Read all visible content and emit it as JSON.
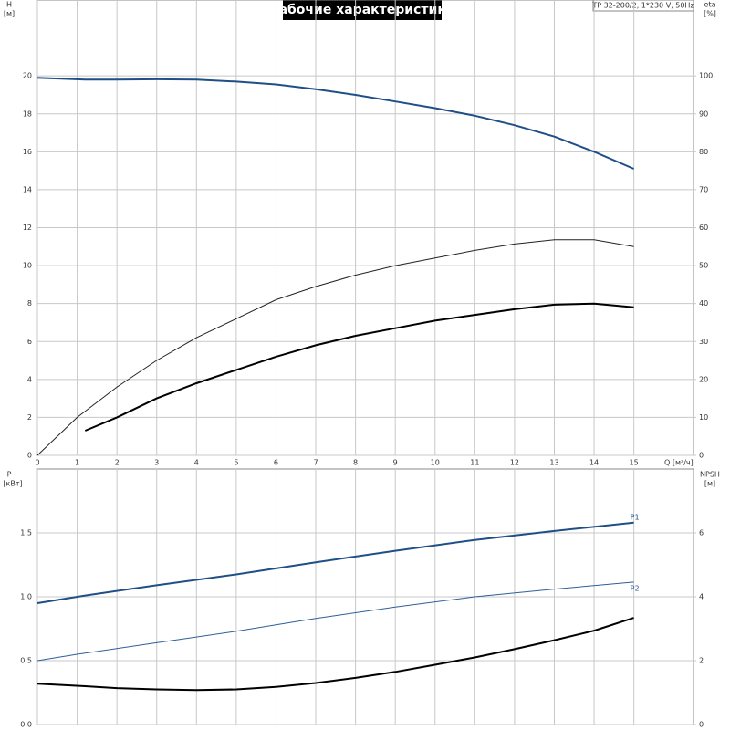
{
  "chart_data": [
    {
      "type": "line",
      "title": "Рабочие характеристики",
      "annotation": "TP 32-200/2, 1*230 V, 50Hz",
      "ylabel": "H",
      "yunit": "[м]",
      "y2label": "eta",
      "y2unit": "[%]",
      "xlabel": "Q [м³/ч]",
      "xlim": [
        0,
        16.5
      ],
      "xticks": [
        0,
        1,
        2,
        3,
        4,
        5,
        6,
        7,
        8,
        9,
        10,
        11,
        12,
        13,
        14,
        15
      ],
      "ylim": [
        0,
        24
      ],
      "yticks": [
        0,
        2,
        4,
        6,
        8,
        10,
        12,
        14,
        16,
        18,
        20
      ],
      "y2lim": [
        0,
        120
      ],
      "y2ticks": [
        0,
        10,
        20,
        30,
        40,
        50,
        60,
        70,
        80,
        90,
        100
      ],
      "grid": true,
      "series": [
        {
          "color": "#1f4f86",
          "x": [
            0,
            1.2,
            2,
            3,
            4,
            5,
            6,
            7,
            8,
            9,
            10,
            11,
            12,
            13,
            14,
            15
          ],
          "values": [
            19.9,
            19.8,
            19.8,
            19.82,
            19.8,
            19.7,
            19.55,
            19.3,
            19.0,
            18.65,
            18.3,
            17.9,
            17.4,
            16.8,
            16.0,
            15.1
          ]
        },
        {
          "color": "#222222",
          "axis": "y2",
          "x": [
            0,
            1,
            2,
            3,
            4,
            5,
            6,
            7,
            8,
            9,
            10,
            11,
            12,
            13,
            14,
            15
          ],
          "values": [
            0,
            10,
            18,
            25,
            31,
            36,
            41,
            44.5,
            47.5,
            50,
            52,
            54,
            55.7,
            56.8,
            56.8,
            55
          ]
        },
        {
          "color": "#000000",
          "axis": "y2",
          "x": [
            1.2,
            2,
            3,
            4,
            5,
            6,
            7,
            8,
            9,
            10,
            11,
            12,
            13,
            14,
            15
          ],
          "values": [
            6.5,
            10,
            15,
            19,
            22.5,
            26,
            29,
            31.5,
            33.5,
            35.5,
            37,
            38.5,
            39.7,
            40,
            39
          ]
        }
      ]
    },
    {
      "type": "line",
      "ylabel": "P",
      "yunit": "[кВт]",
      "y2label": "NPSH",
      "y2unit": "[м]",
      "xlim": [
        0,
        16.5
      ],
      "xticks": [
        0,
        1,
        2,
        3,
        4,
        5,
        6,
        7,
        8,
        9,
        10,
        11,
        12,
        13,
        14,
        15
      ],
      "ylim": [
        0,
        2.0
      ],
      "yticks": [
        {
          "value": 0,
          "label": "0.0"
        },
        {
          "value": 0.5,
          "label": "0.5"
        },
        {
          "value": 1,
          "label": "1.0"
        },
        {
          "value": 1.5,
          "label": "1.5"
        }
      ],
      "y2lim": [
        0,
        8
      ],
      "y2ticks": [
        0,
        2,
        4,
        6
      ],
      "grid": true,
      "series": [
        {
          "name": "P1",
          "color": "#1f4f86",
          "x": [
            0,
            1.2,
            3,
            5,
            7,
            9,
            11,
            13,
            15
          ],
          "values": [
            0.95,
            1.01,
            1.09,
            1.175,
            1.27,
            1.36,
            1.445,
            1.515,
            1.58
          ]
        },
        {
          "name": "P2",
          "color": "#2e5f98",
          "x": [
            0,
            1,
            3,
            5,
            7,
            9,
            11,
            13,
            15
          ],
          "values": [
            0.5,
            0.55,
            0.64,
            0.73,
            0.83,
            0.92,
            1.0,
            1.06,
            1.115
          ]
        },
        {
          "color": "#000000",
          "axis": "y2",
          "x": [
            0,
            1.2,
            2,
            3,
            4,
            5,
            6,
            7,
            8,
            9,
            10,
            11,
            12,
            13,
            14,
            15
          ],
          "values": [
            1.28,
            1.2,
            1.14,
            1.1,
            1.08,
            1.1,
            1.18,
            1.3,
            1.46,
            1.65,
            1.87,
            2.1,
            2.36,
            2.64,
            2.94,
            3.34
          ]
        }
      ]
    }
  ]
}
